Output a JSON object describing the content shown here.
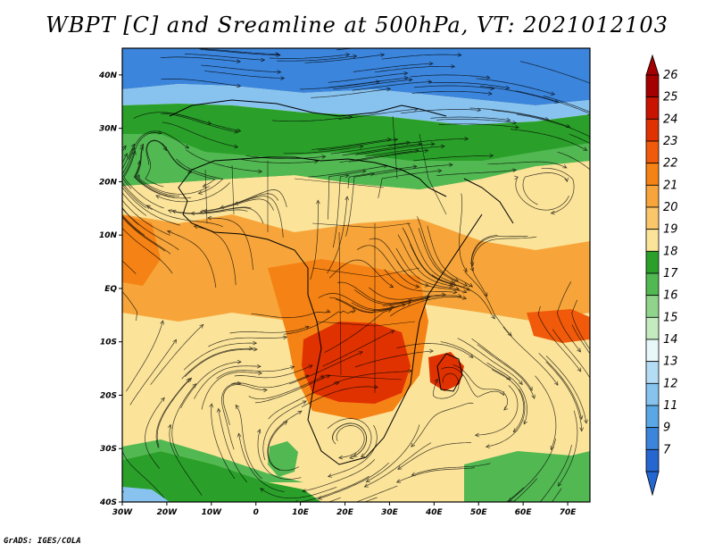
{
  "title": "WBPT [C] and Sreamline at 500hPa, VT: 2021012103",
  "footer": "GrADS: IGES/COLA",
  "map": {
    "variable": "WBPT",
    "units": "C",
    "level": "500hPa",
    "valid_time": "2021012103",
    "lon_range": [
      -30,
      75
    ],
    "lat_range": [
      -40,
      45
    ],
    "lat_ticks": [
      {
        "value": 40,
        "label": "40N"
      },
      {
        "value": 30,
        "label": "30N"
      },
      {
        "value": 20,
        "label": "20N"
      },
      {
        "value": 10,
        "label": "10N"
      },
      {
        "value": 0,
        "label": "EQ"
      },
      {
        "value": -10,
        "label": "10S"
      },
      {
        "value": -20,
        "label": "20S"
      },
      {
        "value": -30,
        "label": "30S"
      },
      {
        "value": -40,
        "label": "40S"
      }
    ],
    "lon_ticks": [
      {
        "value": -30,
        "label": "30W"
      },
      {
        "value": -20,
        "label": "20W"
      },
      {
        "value": -10,
        "label": "10W"
      },
      {
        "value": 0,
        "label": "0"
      },
      {
        "value": 10,
        "label": "10E"
      },
      {
        "value": 20,
        "label": "20E"
      },
      {
        "value": 30,
        "label": "30E"
      },
      {
        "value": 40,
        "label": "40E"
      },
      {
        "value": 50,
        "label": "50E"
      },
      {
        "value": 60,
        "label": "60E"
      },
      {
        "value": 70,
        "label": "70E"
      }
    ]
  },
  "colorbar": {
    "labels": [
      "26",
      "25",
      "24",
      "23",
      "22",
      "21",
      "20",
      "19",
      "18",
      "17",
      "16",
      "15",
      "14",
      "13",
      "12",
      "11",
      "9",
      "7"
    ],
    "colors": [
      "#a50000",
      "#c81400",
      "#e03200",
      "#f05a0a",
      "#f58214",
      "#f7a53a",
      "#f9c76a",
      "#fbe399",
      "#2aa02a",
      "#52b852",
      "#8fd48a",
      "#c3ebbf",
      "#e8f7f8",
      "#b5dcf5",
      "#88c3ef",
      "#5aa7e6",
      "#3b85dc",
      "#2566d0"
    ]
  }
}
